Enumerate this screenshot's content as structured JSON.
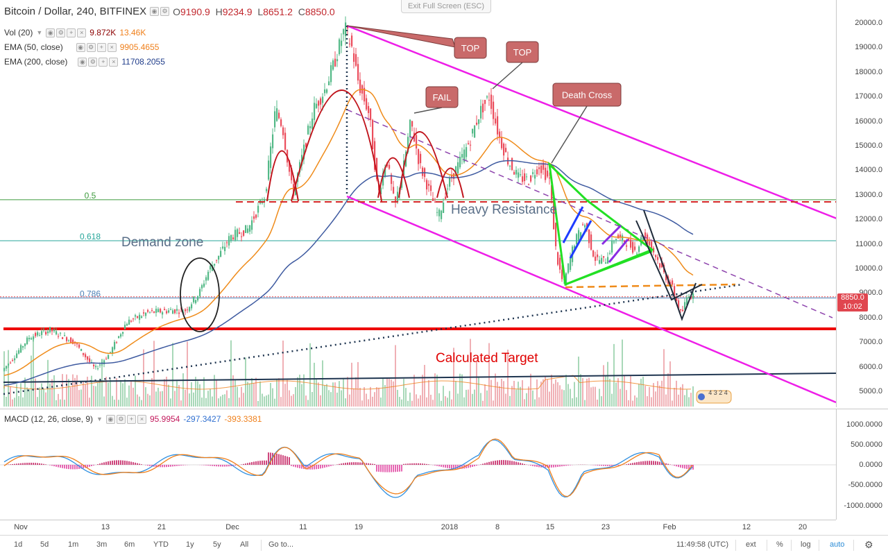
{
  "header": {
    "symbol": "Bitcoin / Dollar, 240, BITFINEX",
    "ohlc": {
      "o_label": "O",
      "o_value": "9190.9",
      "h_label": "H",
      "h_value": "9234.9",
      "l_label": "L",
      "l_value": "8651.2",
      "c_label": "C",
      "c_value": "8850.0"
    }
  },
  "exit_full_screen": "Exit Full Screen (ESC)",
  "indicators": [
    {
      "name": "Vol (20)",
      "values": [
        "9.872K",
        "13.46K"
      ],
      "colors": [
        "#8b0000",
        "#ef7f1a"
      ]
    },
    {
      "name": "EMA (50, close)",
      "values": [
        "9905.4655"
      ],
      "colors": [
        "#ef7f1a"
      ]
    },
    {
      "name": "EMA (200, close)",
      "values": [
        "11708.2055"
      ],
      "colors": [
        "#1f3c8a"
      ]
    }
  ],
  "macd_legend": {
    "name": "MACD (12, 26, close, 9)",
    "values": [
      "95.9954",
      "-297.3427",
      "-393.3381"
    ],
    "colors": [
      "#c2185b",
      "#2f6fd0",
      "#ef7f1a"
    ]
  },
  "price_axis": [
    "20000.0",
    "19000.0",
    "18000.0",
    "17000.0",
    "16000.0",
    "15000.0",
    "14000.0",
    "13000.0",
    "12000.0",
    "11000.0",
    "10000.0",
    "9000.0",
    "8000.0",
    "7000.0",
    "6000.0",
    "5000.0"
  ],
  "price_axis_partial": "8000.0",
  "current_price_badge": {
    "price": "8850.0",
    "countdown": "10:02"
  },
  "macd_axis": [
    "1000.0000",
    "500.0000",
    "0.0000",
    "-500.0000",
    "-1000.0000"
  ],
  "time_axis": [
    "Nov",
    "13",
    "21",
    "Dec",
    "11",
    "19",
    "2018",
    "8",
    "15",
    "23",
    "Feb",
    "12",
    "20"
  ],
  "fib_levels": [
    {
      "label": "0.5",
      "price": 12800,
      "color": "#3c9a3c"
    },
    {
      "label": "0.618",
      "price": 11130,
      "color": "#26a69a"
    },
    {
      "label": "0.786",
      "price": 8800,
      "color": "#4a7fb5"
    }
  ],
  "annotations": {
    "demand_zone": "Demand zone",
    "heavy_resistance": "Heavy Resistance",
    "calculated_target": "Calculated Target",
    "top_1": "TOP",
    "top_2": "TOP",
    "fail": "FAIL",
    "death_cross": "Death Cross",
    "mini_numbers": "4 3 2 4"
  },
  "bottom_bar": {
    "ranges": [
      "1d",
      "5d",
      "1m",
      "3m",
      "6m",
      "YTD",
      "1y",
      "5y",
      "All"
    ],
    "goto": "Go to...",
    "clock": "11:49:58 (UTC)",
    "ext": "ext",
    "percent": "%",
    "log": "log",
    "auto": "auto"
  },
  "colors": {
    "up_candle": "#53b987",
    "down_candle": "#eb4d5c",
    "ema50": "#ef8b1a",
    "ema200": "#3e5aa0",
    "channel": "#ee1ee8",
    "support_red": "#ee0000",
    "callout_fill": "#c96a6a"
  }
}
